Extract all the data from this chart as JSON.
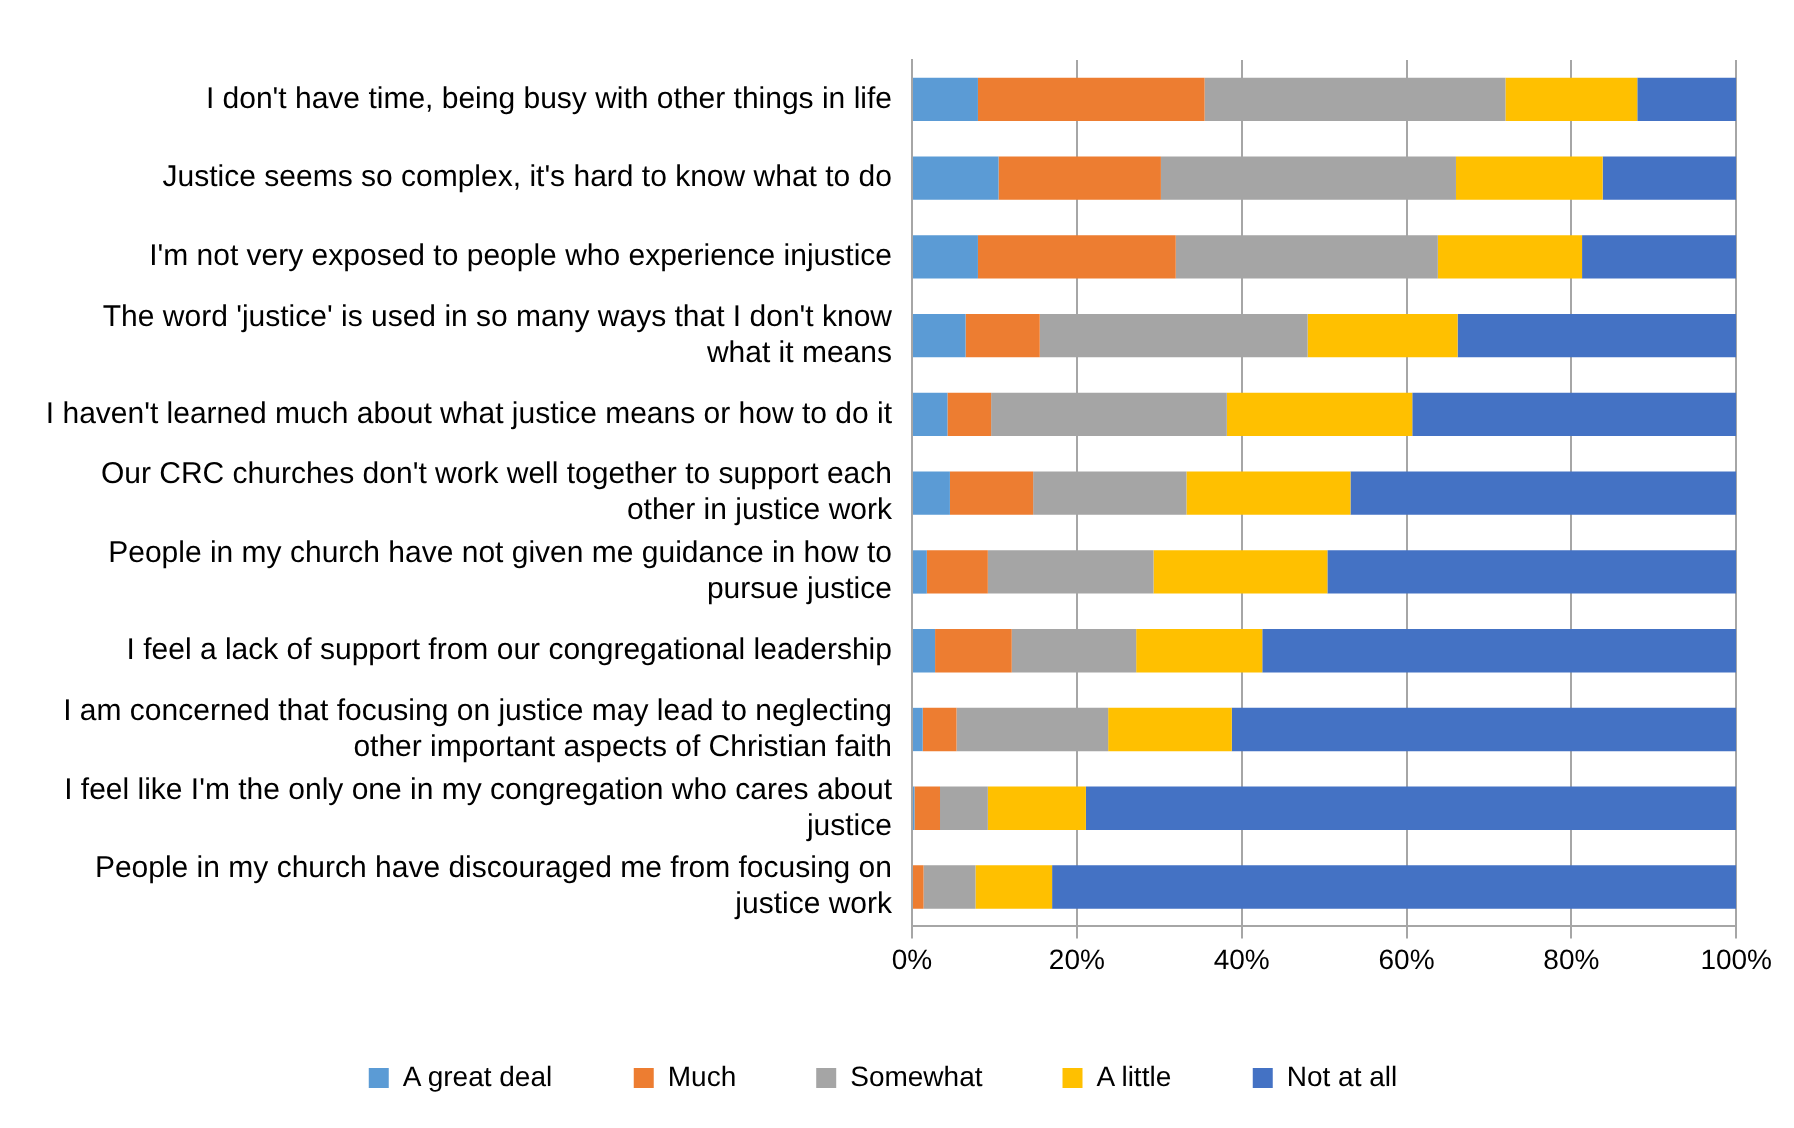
{
  "chart_data": {
    "type": "bar",
    "orientation": "horizontal",
    "stacked": true,
    "categories": [
      "I don't have time, being busy with other things in life",
      "Justice seems so complex, it's hard to know what to do",
      "I'm not very exposed to people who experience injustice",
      "The word 'justice' is used in so many ways that I don't know what it means",
      "I haven't learned much about what justice means or how to do it",
      "Our CRC churches don't work well together to support each other in justice work",
      "People in my church have not given me guidance in how to pursue justice",
      "I feel a lack of support from our congregational leadership",
      "I am concerned that focusing on justice may lead to neglecting other important aspects of Christian faith",
      "I feel like I'm the only one in my congregation who cares about justice",
      "People in my church have discouraged me from focusing on justice work"
    ],
    "series": [
      {
        "name": "A great deal",
        "color": "#5b9bd5",
        "values": [
          8,
          10.5,
          8,
          6.5,
          4.3,
          4.6,
          1.8,
          2.8,
          1.3,
          0.3,
          0
        ]
      },
      {
        "name": "Much",
        "color": "#ed7d31",
        "values": [
          27.5,
          19.7,
          24,
          9,
          5.3,
          10.1,
          7.4,
          9.3,
          4.1,
          3.1,
          1.4
        ]
      },
      {
        "name": "Somewhat",
        "color": "#a5a5a5",
        "values": [
          36.5,
          35.8,
          31.8,
          32.5,
          28.6,
          18.6,
          20.1,
          15.1,
          18.4,
          5.8,
          6.3
        ]
      },
      {
        "name": "A little",
        "color": "#ffc000",
        "values": [
          16,
          17.8,
          17.5,
          18.2,
          22.5,
          19.9,
          21.1,
          15.3,
          15,
          11.9,
          9.3
        ]
      },
      {
        "name": "Not at all",
        "color": "#4472c4",
        "values": [
          12,
          16.2,
          18.7,
          33.8,
          39.3,
          46.8,
          49.6,
          57.5,
          61.2,
          78.9,
          83
        ]
      }
    ],
    "xlim": [
      0,
      100
    ],
    "xticks": [
      {
        "value": 0,
        "label": "0%"
      },
      {
        "value": 20,
        "label": "20%"
      },
      {
        "value": 40,
        "label": "40%"
      },
      {
        "value": 60,
        "label": "60%"
      },
      {
        "value": 80,
        "label": "80%"
      },
      {
        "value": 100,
        "label": "100%"
      }
    ],
    "grid": "x",
    "legend": "bottom"
  }
}
